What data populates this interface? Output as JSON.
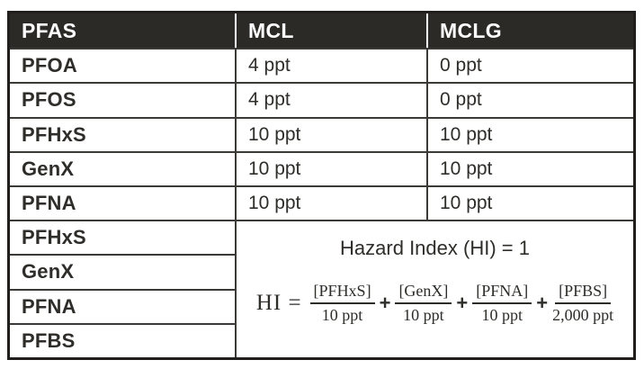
{
  "table": {
    "headers": [
      "PFAS",
      "MCL",
      "MCLG"
    ],
    "rows": [
      {
        "pfas": "PFOA",
        "mcl": "4 ppt",
        "mclg": "0 ppt"
      },
      {
        "pfas": "PFOS",
        "mcl": "4 ppt",
        "mclg": "0 ppt"
      },
      {
        "pfas": "PFHxS",
        "mcl": "10 ppt",
        "mclg": "10 ppt"
      },
      {
        "pfas": "GenX",
        "mcl": "10 ppt",
        "mclg": "10 ppt"
      },
      {
        "pfas": "PFNA",
        "mcl": "10 ppt",
        "mclg": "10 ppt"
      }
    ],
    "hazard_rows": [
      "PFHxS",
      "GenX",
      "PFNA",
      "PFBS"
    ],
    "hazard_cell": {
      "title": "Hazard Index (HI) = 1",
      "formula": {
        "lhs": "HI =",
        "operator": "+",
        "terms": [
          {
            "numerator": "[PFHxS]",
            "denominator": "10 ppt"
          },
          {
            "numerator": "[GenX]",
            "denominator": "10 ppt"
          },
          {
            "numerator": "[PFNA]",
            "denominator": "10 ppt"
          },
          {
            "numerator": "[PFBS]",
            "denominator": "2,000 ppt"
          }
        ]
      }
    }
  },
  "colors": {
    "header_bg": "#2b2a27",
    "header_text": "#ffffff",
    "body_text": "#2e2d2a",
    "inner_border": "#3b3a37",
    "outer_border": "#201f1d",
    "background": "#ffffff"
  },
  "chart_data": {
    "type": "table",
    "columns": [
      "PFAS",
      "MCL",
      "MCLG"
    ],
    "rows": [
      [
        "PFOA",
        "4 ppt",
        "0 ppt"
      ],
      [
        "PFOS",
        "4 ppt",
        "0 ppt"
      ],
      [
        "PFHxS",
        "10 ppt",
        "10 ppt"
      ],
      [
        "GenX",
        "10 ppt",
        "10 ppt"
      ],
      [
        "PFNA",
        "10 ppt",
        "10 ppt"
      ],
      [
        "PFHxS",
        "Hazard Index (HI) = 1",
        ""
      ],
      [
        "GenX",
        "Hazard Index (HI) = 1",
        ""
      ],
      [
        "PFNA",
        "Hazard Index (HI) = 1",
        ""
      ],
      [
        "PFBS",
        "Hazard Index (HI) = 1",
        ""
      ]
    ],
    "title": "",
    "annotations": [
      "Hazard Index (HI) = 1",
      "HI = [PFHxS]/10 ppt + [GenX]/10 ppt + [PFNA]/10 ppt + [PFBS]/2,000 ppt"
    ]
  }
}
